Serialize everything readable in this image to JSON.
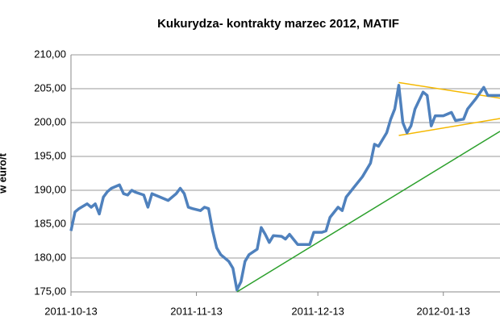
{
  "chart_data": {
    "type": "line",
    "title": "Kukurydza- kontrakty marzec 2012, MATIF",
    "y_label": "w euro/t",
    "x": [
      "2011-10-13",
      "2011-10-14",
      "2011-10-15",
      "2011-10-17",
      "2011-10-18",
      "2011-10-19",
      "2011-10-20",
      "2011-10-21",
      "2011-10-22",
      "2011-10-23",
      "2011-10-25",
      "2011-10-26",
      "2011-10-27",
      "2011-10-28",
      "2011-10-29",
      "2011-10-31",
      "2011-11-01",
      "2011-11-02",
      "2011-11-04",
      "2011-11-06",
      "2011-11-08",
      "2011-11-09",
      "2011-11-10",
      "2011-11-11",
      "2011-11-12",
      "2011-11-14",
      "2011-11-15",
      "2011-11-16",
      "2011-11-17",
      "2011-11-18",
      "2011-11-19",
      "2011-11-21",
      "2011-11-22",
      "2011-11-23",
      "2011-11-24",
      "2011-11-25",
      "2011-11-26",
      "2011-11-28",
      "2011-11-29",
      "2011-11-30",
      "2011-12-01",
      "2011-12-02",
      "2011-12-04",
      "2011-12-05",
      "2011-12-06",
      "2011-12-08",
      "2011-12-10",
      "2011-12-11",
      "2011-12-12",
      "2011-12-14",
      "2011-12-15",
      "2011-12-16",
      "2011-12-18",
      "2011-12-19",
      "2011-12-20",
      "2011-12-22",
      "2011-12-24",
      "2011-12-26",
      "2011-12-27",
      "2011-12-28",
      "2011-12-30",
      "2011-12-31",
      "2012-01-01",
      "2012-01-02",
      "2012-01-03",
      "2012-01-04",
      "2012-01-05",
      "2012-01-06",
      "2012-01-08",
      "2012-01-09",
      "2012-01-10",
      "2012-01-11",
      "2012-01-13",
      "2012-01-15",
      "2012-01-16",
      "2012-01-18",
      "2012-01-19",
      "2012-01-21",
      "2012-01-23",
      "2012-01-24",
      "2012-01-25",
      "2012-01-27"
    ],
    "series": [
      {
        "color": "#4f81bd",
        "values": [
          184,
          186.8,
          187.3,
          188,
          187.5,
          188,
          186.5,
          189,
          189.8,
          190.3,
          190.8,
          189.5,
          189.3,
          190,
          189.7,
          189.3,
          187.5,
          189.5,
          189,
          188.5,
          189.5,
          190.3,
          189.5,
          187.5,
          187.3,
          187,
          187.5,
          187.3,
          184,
          181.5,
          180.5,
          179.5,
          178.5,
          175.3,
          176.5,
          179.5,
          180.5,
          181.3,
          184.5,
          183.5,
          182.3,
          183.3,
          183.2,
          182.8,
          183.5,
          182,
          182,
          182,
          183.8,
          183.8,
          184,
          186,
          187.5,
          187,
          189,
          190.5,
          192,
          194,
          196.8,
          196.5,
          198.5,
          200.5,
          202,
          205.5,
          200,
          198.5,
          199.5,
          202,
          204.5,
          204,
          199.5,
          201,
          201,
          201.5,
          200.3,
          200.5,
          202,
          203.5,
          205.2,
          204,
          204,
          204
        ]
      }
    ],
    "trendlines": [
      {
        "color": "#2ca02c",
        "x": [
          "2011-11-23",
          "2012-01-27"
        ],
        "values": [
          175,
          198.7
        ]
      },
      {
        "color": "#f5b800",
        "x": [
          "2012-01-02",
          "2012-01-27"
        ],
        "values": [
          205.9,
          203.6
        ]
      },
      {
        "color": "#f5b800",
        "x": [
          "2012-01-02",
          "2012-01-27"
        ],
        "values": [
          198.1,
          200.6
        ]
      }
    ],
    "xlim": [
      "2011-10-13",
      "2012-01-27"
    ],
    "xticks": [
      "2011-10-13",
      "2011-11-13",
      "2011-12-13",
      "2012-01-13"
    ],
    "ylim": [
      175,
      210
    ],
    "yticks": [
      {
        "value": 175,
        "label": "175,00"
      },
      {
        "value": 180,
        "label": "180,00"
      },
      {
        "value": 185,
        "label": "185,00"
      },
      {
        "value": 190,
        "label": "190,00"
      },
      {
        "value": 195,
        "label": "195,00"
      },
      {
        "value": 200,
        "label": "200,00"
      },
      {
        "value": 205,
        "label": "205,00"
      },
      {
        "value": 210,
        "label": "210,00"
      }
    ],
    "grid": true
  }
}
